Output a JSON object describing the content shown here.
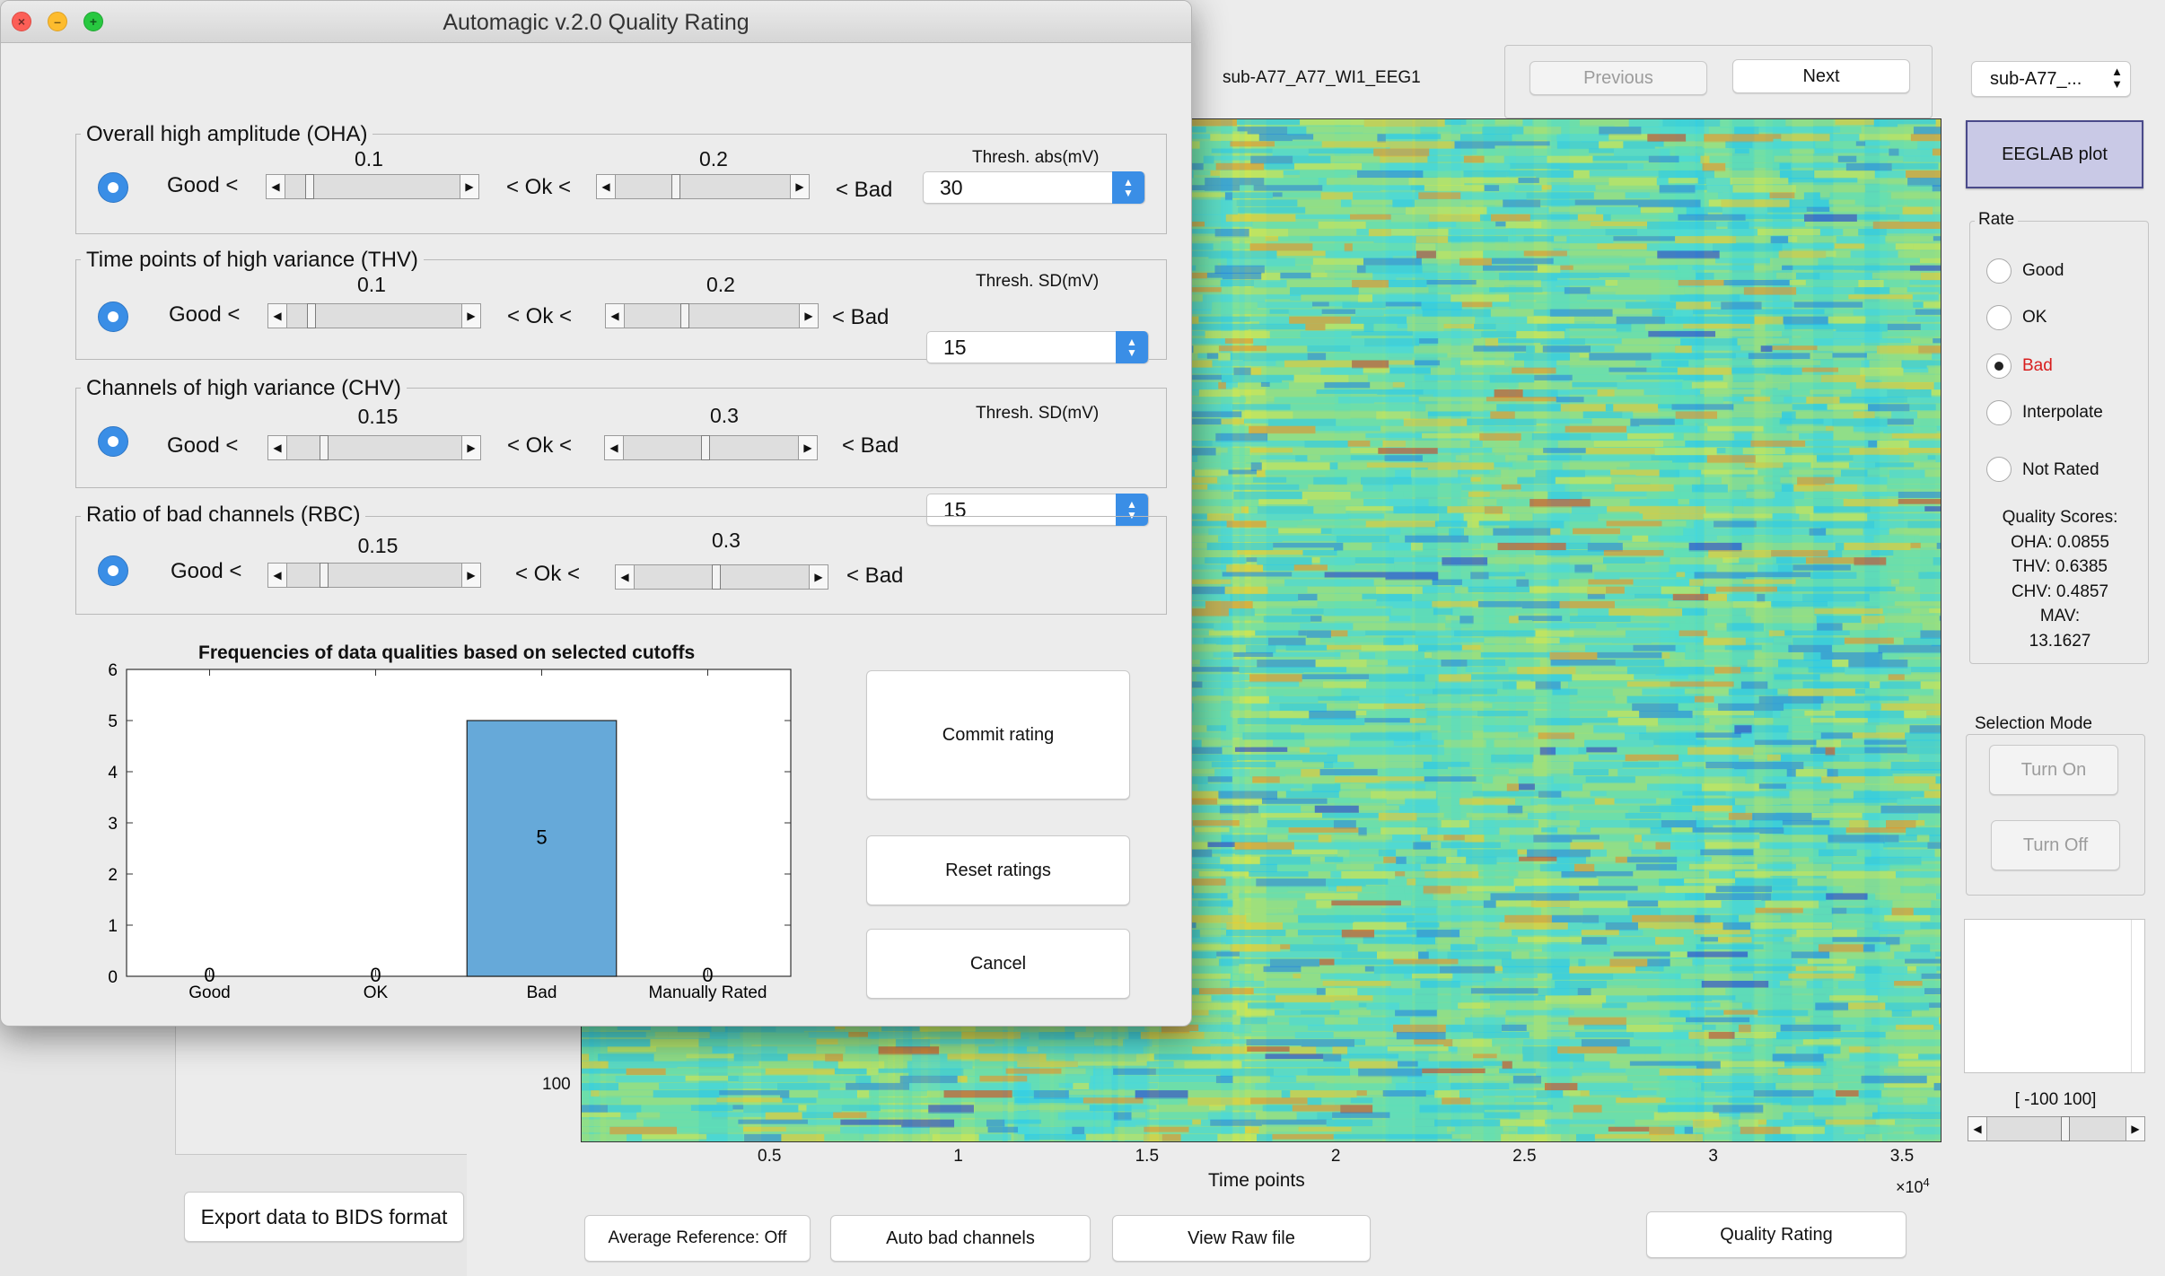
{
  "main_window": {
    "file_label": "sub-A77_A77_WI1_EEG1",
    "previous_label": "Previous",
    "next_label": "Next",
    "subject_select": "sub-A77_...",
    "eeglab_label": "EEGLAB plot",
    "rate": {
      "title": "Rate",
      "options": [
        "Good",
        "OK",
        "Bad",
        "Interpolate",
        "Not Rated"
      ],
      "selected": "Bad"
    },
    "quality_scores": {
      "title": "Quality Scores:",
      "oha": "OHA: 0.0855",
      "thv": "THV: 0.6385",
      "chv": "CHV: 0.4857",
      "mav": "MAV:",
      "mav_value": "13.1627"
    },
    "selection_mode": {
      "title": "Selection Mode",
      "turn_on": "Turn On",
      "turn_off": "Turn Off"
    },
    "color_range": "[ -100 100]",
    "plot": {
      "y_tick": "100",
      "x_ticks": [
        "0.5",
        "1",
        "1.5",
        "2",
        "2.5",
        "3",
        "3.5"
      ],
      "x_label": "Time points",
      "x_exponent_base": "×10",
      "x_exponent_power": "4"
    },
    "buttons": {
      "export_bids": "Export data to BIDS format",
      "average_reference": "Average Reference: Off",
      "auto_bad_channels": "Auto bad channels",
      "view_raw": "View Raw file",
      "quality_rating": "Quality Rating"
    }
  },
  "dialog": {
    "title": "Automagic v.2.0 Quality Rating",
    "panels": [
      {
        "title": "Overall high amplitude (OHA)",
        "good_label": "Good <",
        "ok_label": "< Ok <",
        "bad_label": "< Bad",
        "good_value": "0.1",
        "bad_value": "0.2",
        "thresh_label": "Thresh. abs(mV)",
        "thresh_value": "30"
      },
      {
        "title": "Time points of high variance (THV)",
        "good_label": "Good <",
        "ok_label": "< Ok <",
        "bad_label": "< Bad",
        "good_value": "0.1",
        "bad_value": "0.2",
        "thresh_label": "Thresh. SD(mV)",
        "thresh_value": "15"
      },
      {
        "title": "Channels of high variance (CHV)",
        "good_label": "Good <",
        "ok_label": "< Ok <",
        "bad_label": "< Bad",
        "good_value": "0.15",
        "bad_value": "0.3",
        "thresh_label": "Thresh. SD(mV)",
        "thresh_value": "15"
      },
      {
        "title": "Ratio of bad channels (RBC)",
        "good_label": "Good <",
        "ok_label": "< Ok <",
        "bad_label": "< Bad",
        "good_value": "0.15",
        "bad_value": "0.3"
      }
    ],
    "buttons": {
      "commit": "Commit rating",
      "reset": "Reset ratings",
      "cancel": "Cancel"
    }
  },
  "chart_data": {
    "type": "bar",
    "title": "Frequencies of data qualities based on selected cutoffs",
    "categories": [
      "Good",
      "OK",
      "Bad",
      "Manually Rated"
    ],
    "values": [
      0,
      0,
      5,
      0
    ],
    "data_labels": [
      "0",
      "0",
      "5",
      "0"
    ],
    "ylim": [
      0,
      6
    ],
    "y_ticks": [
      "0",
      "1",
      "2",
      "3",
      "4",
      "5",
      "6"
    ],
    "bar_color": "#66a9d9",
    "xlabel": "",
    "ylabel": ""
  },
  "colors": {
    "accent": "#3a8ee6",
    "eeglab_button": "#c9c9e6",
    "bad_text": "#d81e1e"
  }
}
